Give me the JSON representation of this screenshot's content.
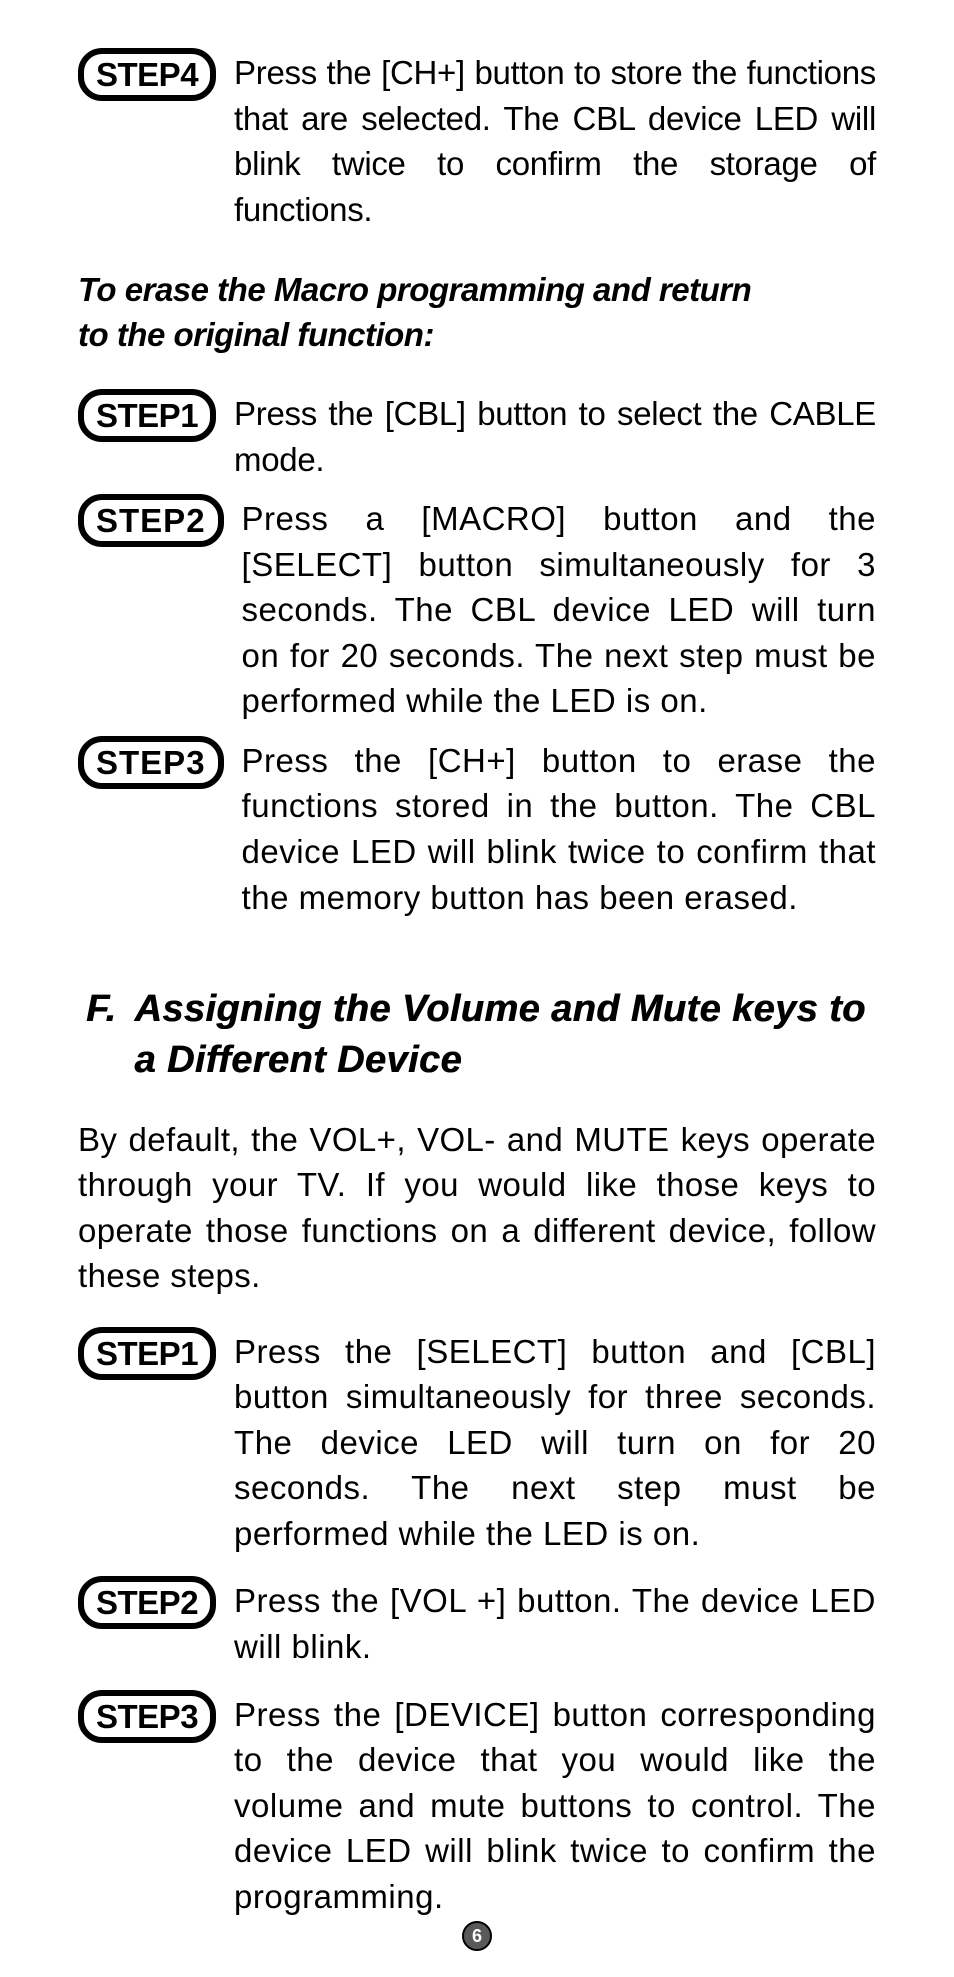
{
  "colors": {
    "page_bg": "#ffffff",
    "text": "#000000",
    "badge_border": "#000000",
    "page_badge_bg": "#595959",
    "page_badge_fg": "#ffffff",
    "page_badge_border": "#000000"
  },
  "typography": {
    "body_fontsize_pt": 25,
    "heading_fontsize_pt": 28,
    "step_badge_fontsize_pt": 25,
    "font_family": "Helvetica Neue Condensed",
    "body_line_height": 1.38
  },
  "top_continued_step": {
    "label": "STEP4",
    "text": "Press the [CH+] button to store the functions that are selected. The CBL device LED will blink twice to confirm the storage of functions."
  },
  "erase_macro": {
    "subheading": "To erase the Macro programming and return to the original function:",
    "steps": [
      {
        "label": "STEP1",
        "text": "Press the [CBL] button to select the CABLE mode."
      },
      {
        "label": "STEP2",
        "text": "Press a [MACRO] button and the [SELECT] button simultaneously for 3 seconds. The CBL device LED will turn on for 20 seconds. The next step must be performed while the LED is on."
      },
      {
        "label": "STEP3",
        "text": "Press the [CH+] button to erase the functions stored in the button. The CBL device LED will blink twice to confirm that the memory button has been erased."
      }
    ]
  },
  "section_f": {
    "prefix": "F.",
    "title": "Assigning the Volume and Mute keys to a Different Device",
    "intro": "By default, the VOL+, VOL- and MUTE keys operate through your TV. If you would like those keys to operate those functions on a different device, follow these steps.",
    "steps": [
      {
        "label": "STEP1",
        "text": "Press the [SELECT] button and [CBL] button simultaneously for three seconds. The device LED will turn on for 20 seconds. The next step must be performed while the LED is on."
      },
      {
        "label": "STEP2",
        "text": "Press the [VOL +] button. The device LED will blink."
      },
      {
        "label": "STEP3",
        "text": "Press the [DEVICE] button corresponding to the device that you would like the volume and mute buttons to control. The device LED will blink twice to confirm the programming."
      }
    ]
  },
  "page_number": "6"
}
